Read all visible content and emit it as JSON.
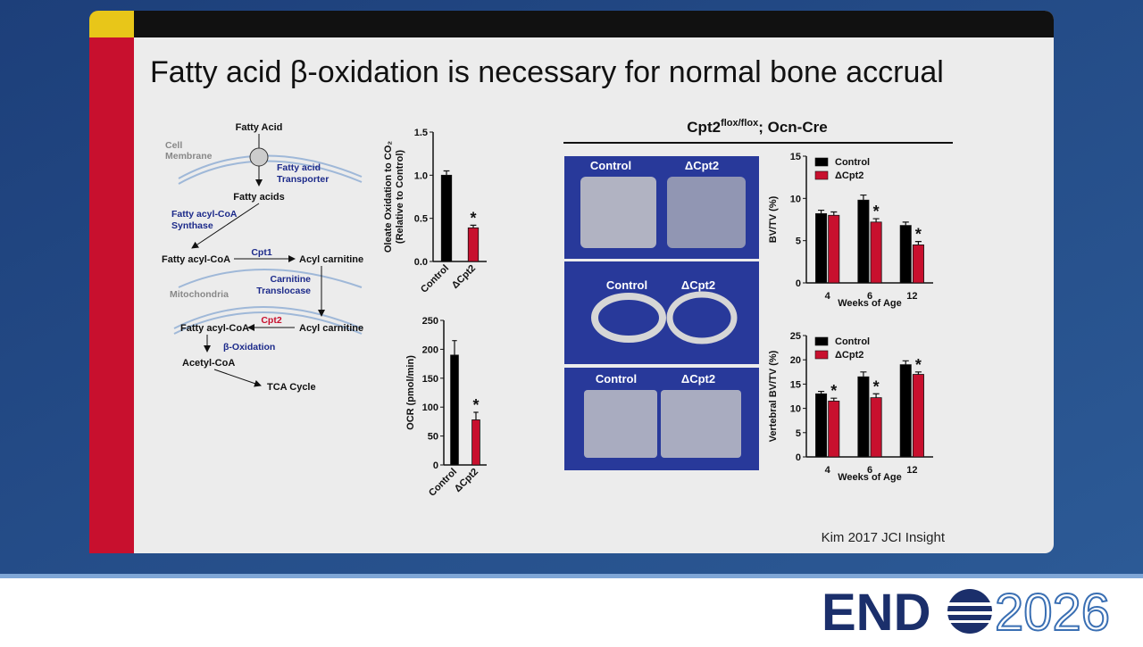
{
  "slide": {
    "title": "Fatty acid β-oxidation is necessary for normal bone accrual",
    "diagram": {
      "fatty_acid": "Fatty Acid",
      "cell_membrane": [
        "Cell",
        "Membrane"
      ],
      "transporter": [
        "Fatty acid",
        "Transporter"
      ],
      "fatty_acids": "Fatty acids",
      "synthase": [
        "Fatty acyl-CoA",
        "Synthase"
      ],
      "acyl_coa_1": "Fatty acyl-CoA",
      "cpt1": "Cpt1",
      "acyl_carnitine_1": "Acyl carnitine",
      "mitochondria": "Mitochondria",
      "translocase": [
        "Carnitine",
        "Translocase"
      ],
      "acyl_coa_2": "Fatty acyl-CoA",
      "cpt2": "Cpt2",
      "acyl_carnitine_2": "Acyl carnitine",
      "beta_oxidation": "β-Oxidation",
      "acetyl_coa": "Acetyl-CoA",
      "tca": "TCA Cycle"
    },
    "genotype": {
      "gene": "Cpt2",
      "sup": "flox/flox",
      "rest": "; Ocn-Cre"
    },
    "images": [
      {
        "labels": [
          "Control",
          "ΔCpt2"
        ]
      },
      {
        "labels": [
          "Control",
          "ΔCpt2"
        ]
      },
      {
        "labels": [
          "Control",
          "ΔCpt2"
        ]
      }
    ],
    "citation": "Kim 2017 JCI Insight",
    "logo": {
      "left": "END",
      "right": "2026"
    }
  },
  "chart_data": [
    {
      "type": "bar",
      "ylabel": [
        "Oleate Oxidation to CO₂",
        "(Relative to Control)"
      ],
      "categories": [
        "Control",
        "ΔCpt2"
      ],
      "values": [
        1.0,
        0.39
      ],
      "errors": [
        0.05,
        0.03
      ],
      "stars": [
        null,
        "*"
      ],
      "colors": [
        "#000000",
        "#c8102e"
      ],
      "ylim": [
        0,
        1.5
      ],
      "yticks": [
        {
          "value": 0,
          "label": "0.0"
        },
        0.5,
        {
          "value": 1,
          "label": "1.0"
        },
        1.5
      ],
      "x_label_rotation": 45
    },
    {
      "type": "bar",
      "ylabel": [
        "OCR (pmol/min)"
      ],
      "categories": [
        "Control",
        "ΔCpt2"
      ],
      "values": [
        190,
        78
      ],
      "errors": [
        25,
        13
      ],
      "stars": [
        null,
        "*"
      ],
      "colors": [
        "#000000",
        "#c8102e"
      ],
      "ylim": [
        0,
        250
      ],
      "yticks": [
        0,
        50,
        100,
        150,
        200,
        250
      ],
      "x_label_rotation": 45
    },
    {
      "type": "bar",
      "ylabel": [
        "BV/TV (%)"
      ],
      "xlabel": "Weeks of Age",
      "categories": [
        "4",
        "6",
        "12"
      ],
      "series": [
        {
          "name": "Control",
          "color": "#000000",
          "values": [
            8.2,
            9.8,
            6.8
          ],
          "errors": [
            0.4,
            0.6,
            0.4
          ],
          "stars": [
            null,
            null,
            null
          ]
        },
        {
          "name": "ΔCpt2",
          "color": "#c8102e",
          "values": [
            8.0,
            7.2,
            4.5
          ],
          "errors": [
            0.4,
            0.4,
            0.4
          ],
          "stars": [
            null,
            "*",
            "*"
          ]
        }
      ],
      "ylim": [
        0,
        15
      ],
      "yticks": [
        0,
        5,
        10,
        15
      ],
      "legend": "upper-left"
    },
    {
      "type": "bar",
      "ylabel": [
        "Vertebral BV/TV (%)"
      ],
      "xlabel": "Weeks of Age",
      "categories": [
        "4",
        "6",
        "12"
      ],
      "series": [
        {
          "name": "Control",
          "color": "#000000",
          "values": [
            13,
            16.5,
            19
          ],
          "errors": [
            0.5,
            1.0,
            0.8
          ],
          "stars": [
            null,
            null,
            null
          ]
        },
        {
          "name": "ΔCpt2",
          "color": "#c8102e",
          "values": [
            11.5,
            12.2,
            17
          ],
          "errors": [
            0.6,
            0.8,
            0.5
          ],
          "stars": [
            "*",
            "*",
            "*"
          ]
        }
      ],
      "ylim": [
        0,
        25
      ],
      "yticks": [
        0,
        5,
        10,
        15,
        20,
        25
      ],
      "legend": "upper-left"
    }
  ]
}
